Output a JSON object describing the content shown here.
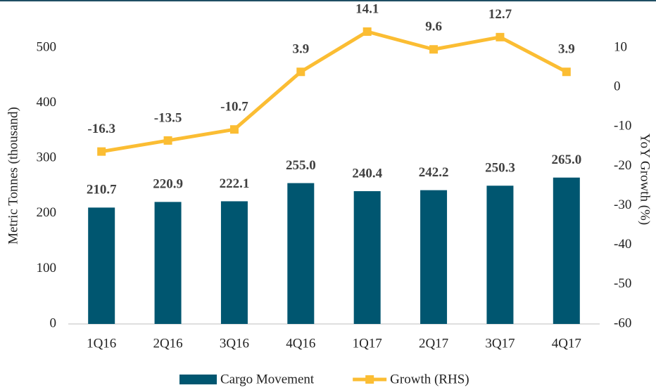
{
  "chart_data": {
    "type": "bar",
    "categories": [
      "1Q16",
      "2Q16",
      "3Q16",
      "4Q16",
      "1Q17",
      "2Q17",
      "3Q17",
      "4Q17"
    ],
    "series": [
      {
        "name": "Cargo Movement",
        "type": "bar",
        "color": "#005670",
        "values": [
          210.7,
          220.9,
          222.1,
          255.0,
          240.4,
          242.2,
          250.3,
          265.0
        ],
        "value_labels": [
          "210.7",
          "220.9",
          "222.1",
          "255.0",
          "240.4",
          "242.2",
          "250.3",
          "265.0"
        ]
      },
      {
        "name": "Growth (RHS)",
        "type": "line",
        "axis": "y2",
        "color": "#fbbd33",
        "values": [
          -16.3,
          -13.5,
          -10.7,
          3.9,
          14.1,
          9.6,
          12.7,
          3.9
        ]
      }
    ],
    "ylabel": "Metric Tonnes (thousand)",
    "y2label": "YoY Growth (%)",
    "ylim": [
      0,
      550
    ],
    "yticks": [
      0,
      100,
      200,
      300,
      400,
      500
    ],
    "y2lim": [
      -60,
      17
    ],
    "y2ticks": [
      -60,
      -50,
      -40,
      -30,
      -20,
      -10,
      0,
      10
    ],
    "legend": "bottom"
  }
}
